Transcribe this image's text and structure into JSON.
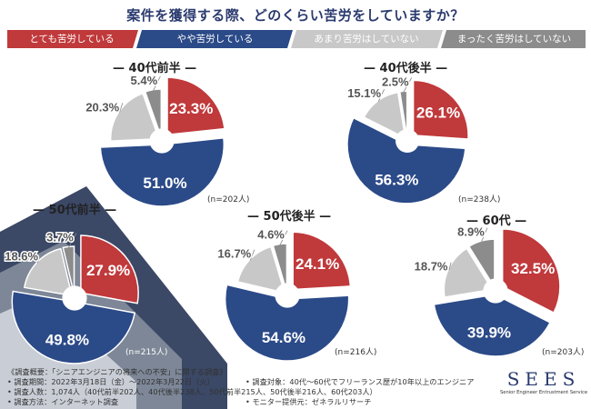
{
  "title": "案件を獲得する際、どのくらい苦労をしていますか？",
  "legend": [
    {
      "label": "とても苦労している",
      "color": "#c0393b"
    },
    {
      "label": "やや苦労している",
      "color": "#2b4a88"
    },
    {
      "label": "あまり苦労はしていない",
      "color": "#c8c8c8"
    },
    {
      "label": "まったく苦労はしていない",
      "color": "#8c8c8c"
    }
  ],
  "chart_data": [
    {
      "type": "pie",
      "title": "40代前半",
      "n": "(n=202人)",
      "series": [
        "とても苦労している",
        "やや苦労している",
        "あまり苦労はしていない",
        "まったく苦労はしていない"
      ],
      "values": [
        23.3,
        51.0,
        20.3,
        5.4
      ],
      "labels": [
        "23.3%",
        "51.0%",
        "20.3%",
        "5.4%"
      ]
    },
    {
      "type": "pie",
      "title": "40代後半",
      "n": "(n=238人)",
      "series": [
        "とても苦労している",
        "やや苦労している",
        "あまり苦労はしていない",
        "まったく苦労はしていない"
      ],
      "values": [
        26.1,
        56.3,
        15.1,
        2.5
      ],
      "labels": [
        "26.1%",
        "56.3%",
        "15.1%",
        "2.5%"
      ]
    },
    {
      "type": "pie",
      "title": "50代前半",
      "n": "(n=215人)",
      "series": [
        "とても苦労している",
        "やや苦労している",
        "あまり苦労はしていない",
        "まったく苦労はしていない"
      ],
      "values": [
        27.9,
        49.8,
        18.6,
        3.7
      ],
      "labels": [
        "27.9%",
        "49.8%",
        "18.6%",
        "3.7%"
      ]
    },
    {
      "type": "pie",
      "title": "50代後半",
      "n": "(n=216人)",
      "series": [
        "とても苦労している",
        "やや苦労している",
        "あまり苦労はしていない",
        "まったく苦労はしていない"
      ],
      "values": [
        24.1,
        54.6,
        16.7,
        4.6
      ],
      "labels": [
        "24.1%",
        "54.6%",
        "16.7%",
        "4.6%"
      ]
    },
    {
      "type": "pie",
      "title": "60代",
      "n": "(n=203人)",
      "series": [
        "とても苦労している",
        "やや苦労している",
        "あまり苦労はしていない",
        "まったく苦労はしていない"
      ],
      "values": [
        32.5,
        39.9,
        18.7,
        8.9
      ],
      "labels": [
        "32.5%",
        "39.9%",
        "18.7%",
        "8.9%"
      ]
    }
  ],
  "notes": {
    "survey": "《調査概要：「シニアエンジニアの将来への不安」に関する調査》",
    "period": "• 調査期間：2022年3月18日（金）〜2022年3月22日（火）",
    "count": "• 調査人数：1,074人（40代前半202人、40代後半238人、50代前半215人、50代後半216人、60代203人）",
    "method": "• 調査方法：インターネット調査",
    "target": "• 調査対象：40代〜60代でフリーランス歴が10年以上のエンジニア",
    "provider": "• モニター提供元：ゼネラルリサーチ"
  },
  "logo": {
    "name": "SEES",
    "tagline": "Senior Engineer Entrustment Service"
  }
}
